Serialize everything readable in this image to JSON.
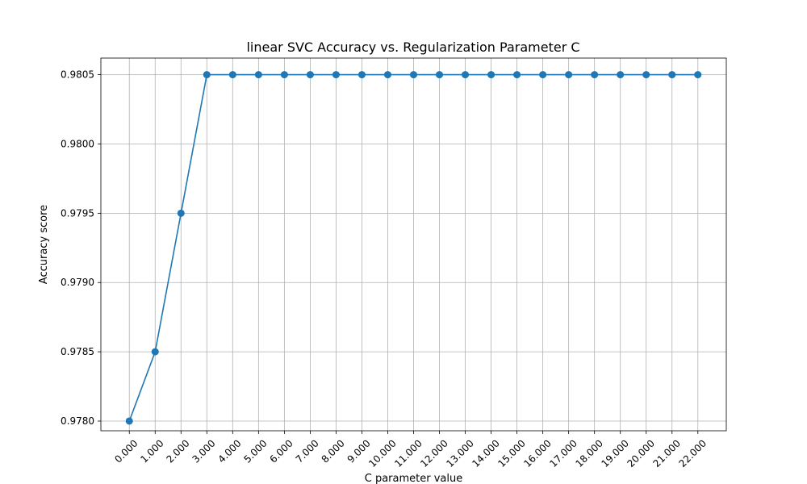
{
  "chart_data": {
    "type": "line",
    "title": "linear SVC Accuracy vs. Regularization Parameter C",
    "xlabel": "C parameter value",
    "ylabel": "Accuracy score",
    "x": [
      0,
      1,
      2,
      3,
      4,
      5,
      6,
      7,
      8,
      9,
      10,
      11,
      12,
      13,
      14,
      15,
      16,
      17,
      18,
      19,
      20,
      21,
      22
    ],
    "x_tick_labels": [
      "0.000",
      "1.000",
      "2.000",
      "3.000",
      "4.000",
      "5.000",
      "6.000",
      "7.000",
      "8.000",
      "9.000",
      "10.000",
      "11.000",
      "12.000",
      "13.000",
      "14.000",
      "15.000",
      "16.000",
      "17.000",
      "18.000",
      "19.000",
      "20.000",
      "21.000",
      "22.000"
    ],
    "series": [
      {
        "values": [
          0.978,
          0.9785,
          0.9795,
          0.9805,
          0.9805,
          0.9805,
          0.9805,
          0.9805,
          0.9805,
          0.9805,
          0.9805,
          0.9805,
          0.9805,
          0.9805,
          0.9805,
          0.9805,
          0.9805,
          0.9805,
          0.9805,
          0.9805,
          0.9805,
          0.9805,
          0.9805
        ],
        "color": "#1f77b4",
        "marker": "circle"
      }
    ],
    "y_ticks": [
      0.978,
      0.9785,
      0.979,
      0.9795,
      0.98,
      0.9805
    ],
    "y_tick_labels": [
      "0.9780",
      "0.9785",
      "0.9790",
      "0.9795",
      "0.9800",
      "0.9805"
    ],
    "xlim": [
      -1.1,
      23.1
    ],
    "ylim": [
      0.97793,
      0.98062
    ],
    "grid": true,
    "x_tick_rotation_deg": 45
  }
}
